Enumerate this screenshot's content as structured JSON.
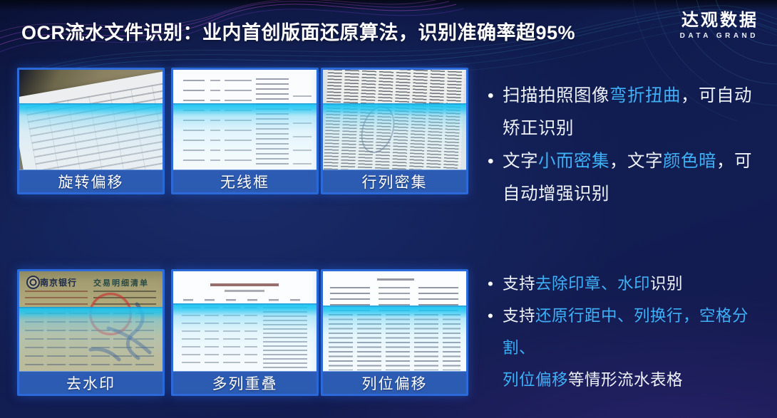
{
  "title": "OCR流水文件识别：业内首创版面还原算法，识别准确率超95%",
  "logo": {
    "name_cn": "达观数据",
    "name_en": "DATA GRAND"
  },
  "bullet_char": "•",
  "colors": {
    "background": "#101c4e",
    "title_text": "#ffffff",
    "highlight": "#3fb0f7",
    "label_bar_blue": "#2c60be",
    "scan_cyan": "#19c4f2",
    "thumb_border": "#2b6ad8"
  },
  "thumbnails": [
    {
      "label": "旋转偏移"
    },
    {
      "label": "无线框"
    },
    {
      "label": "行列密集"
    },
    {
      "label": "去水印",
      "doc": {
        "bank": "南京银行",
        "title": "交易明细清单"
      }
    },
    {
      "label": "多列重叠"
    },
    {
      "label": "列位偏移"
    }
  ],
  "bullets_top": [
    {
      "lines": [
        {
          "segs": [
            {
              "t": "扫描拍照图像",
              "hl": false
            },
            {
              "t": "弯折扭曲",
              "hl": true
            },
            {
              "t": "，可自动",
              "hl": false
            }
          ]
        },
        {
          "segs": [
            {
              "t": "矫正识别",
              "hl": false
            }
          ]
        }
      ]
    },
    {
      "lines": [
        {
          "segs": [
            {
              "t": "文字",
              "hl": false
            },
            {
              "t": "小而密集",
              "hl": true
            },
            {
              "t": "，文字",
              "hl": false
            },
            {
              "t": "颜色暗",
              "hl": true
            },
            {
              "t": "，可",
              "hl": false
            }
          ]
        },
        {
          "segs": [
            {
              "t": "自动增强识别",
              "hl": false
            }
          ]
        }
      ]
    }
  ],
  "bullets_bottom": [
    {
      "lines": [
        {
          "segs": [
            {
              "t": "支持",
              "hl": false
            },
            {
              "t": "去除印章、水印",
              "hl": true
            },
            {
              "t": "识别",
              "hl": false
            }
          ]
        }
      ]
    },
    {
      "lines": [
        {
          "segs": [
            {
              "t": "支持",
              "hl": false
            },
            {
              "t": "还原行距中、列换行，空格分割、",
              "hl": true
            }
          ]
        },
        {
          "segs": [
            {
              "t": "列位偏移",
              "hl": true
            },
            {
              "t": "等情形流水表格",
              "hl": false
            }
          ]
        }
      ]
    }
  ]
}
